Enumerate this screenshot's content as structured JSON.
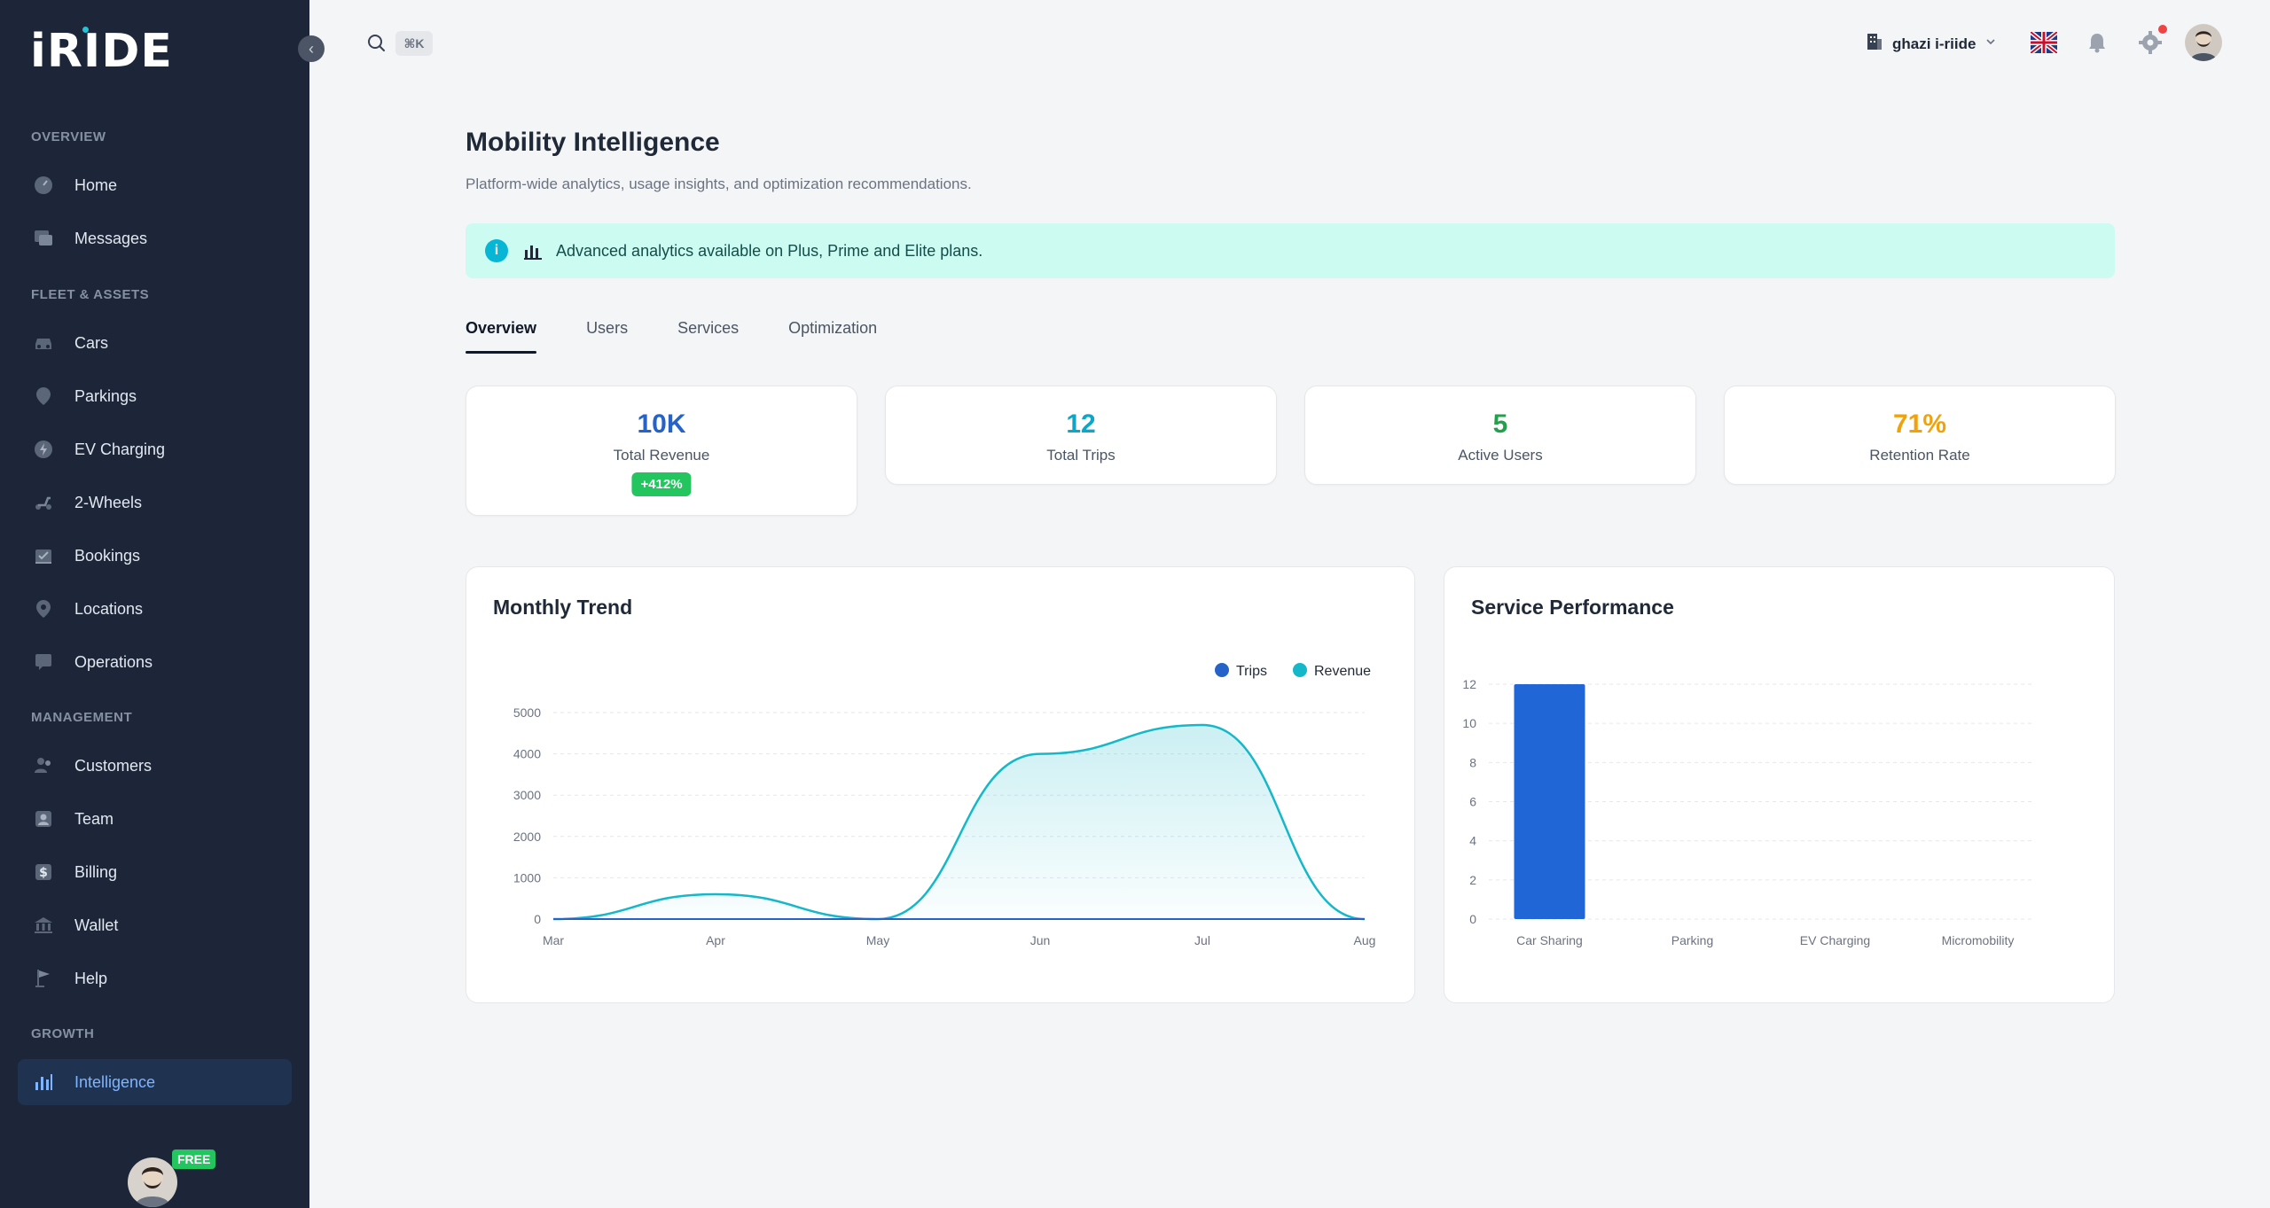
{
  "app": {
    "logo": "iRIDE"
  },
  "sidebar": {
    "sections": {
      "overview": "OVERVIEW",
      "fleet": "FLEET & ASSETS",
      "management": "MANAGEMENT",
      "growth": "GROWTH"
    },
    "items": [
      {
        "label": "Home",
        "icon": "gauge-icon"
      },
      {
        "label": "Messages",
        "icon": "messages-icon"
      },
      {
        "label": "Cars",
        "icon": "car-icon"
      },
      {
        "label": "Parkings",
        "icon": "pin-icon"
      },
      {
        "label": "EV Charging",
        "icon": "bolt-icon"
      },
      {
        "label": "2-Wheels",
        "icon": "scooter-icon"
      },
      {
        "label": "Bookings",
        "icon": "calendar-icon"
      },
      {
        "label": "Locations",
        "icon": "location-icon"
      },
      {
        "label": "Operations",
        "icon": "operations-icon"
      },
      {
        "label": "Customers",
        "icon": "users-icon"
      },
      {
        "label": "Team",
        "icon": "team-icon"
      },
      {
        "label": "Billing",
        "icon": "dollar-icon"
      },
      {
        "label": "Wallet",
        "icon": "bank-icon"
      },
      {
        "label": "Help",
        "icon": "flag-icon"
      },
      {
        "label": "Intelligence",
        "icon": "bar-chart-icon"
      }
    ],
    "plan_badge": "FREE"
  },
  "topbar": {
    "shortcut": "⌘K",
    "org_name": "ghazi i-riide"
  },
  "page": {
    "title": "Mobility Intelligence",
    "subtitle": "Platform-wide analytics, usage insights, and optimization recommendations.",
    "banner": "Advanced analytics available on Plus, Prime and Elite plans."
  },
  "tabs": [
    "Overview",
    "Users",
    "Services",
    "Optimization"
  ],
  "stats": [
    {
      "value": "10K",
      "label": "Total Revenue",
      "badge": "+412%",
      "color": "#2563c9"
    },
    {
      "value": "12",
      "label": "Total Trips",
      "color": "#0ea5c6"
    },
    {
      "value": "5",
      "label": "Active Users",
      "color": "#22a04b"
    },
    {
      "value": "71%",
      "label": "Retention Rate",
      "color": "#f0a20c"
    }
  ],
  "chart_data": [
    {
      "type": "area",
      "title": "Monthly Trend",
      "categories": [
        "Mar",
        "Apr",
        "May",
        "Jun",
        "Jul",
        "Aug"
      ],
      "series": [
        {
          "name": "Trips",
          "values": [
            0,
            0,
            0,
            0,
            0,
            0
          ],
          "color": "#2563c9"
        },
        {
          "name": "Revenue",
          "values": [
            0,
            600,
            0,
            4000,
            4700,
            0
          ],
          "color": "#14b8c8"
        }
      ],
      "yticks": [
        0,
        1000,
        2000,
        3000,
        4000,
        5000
      ],
      "ylim": [
        0,
        5000
      ],
      "legend": "top-right",
      "grid": true
    },
    {
      "type": "bar",
      "title": "Service Performance",
      "categories": [
        "Car Sharing",
        "Parking",
        "EV Charging",
        "Micromobility"
      ],
      "values": [
        12,
        0,
        0,
        0
      ],
      "yticks": [
        0,
        2,
        4,
        6,
        8,
        10,
        12
      ],
      "ylim": [
        0,
        12
      ],
      "color": "#2166d6",
      "grid": true
    }
  ]
}
